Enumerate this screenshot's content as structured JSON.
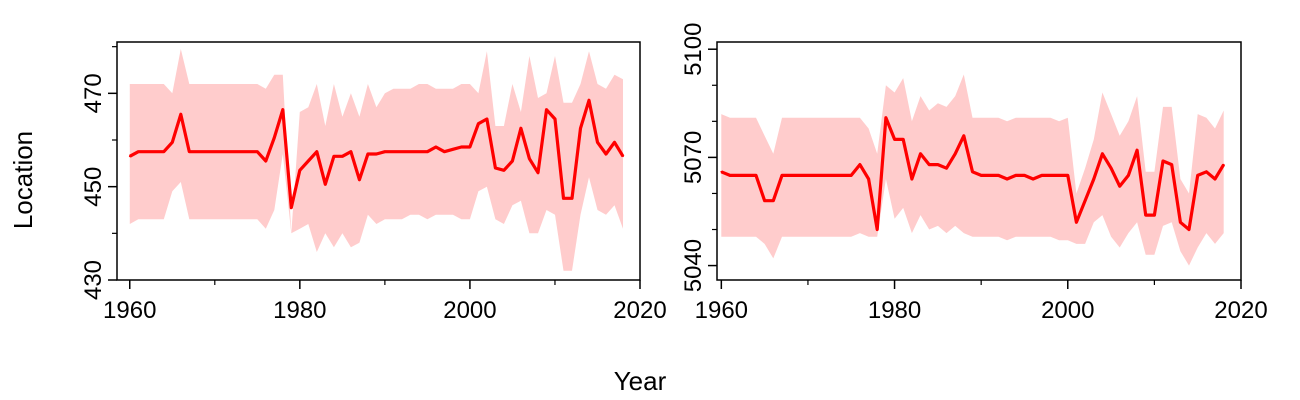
{
  "figure": {
    "xlabel": "Year",
    "ylabel": "Location"
  },
  "chart_data": [
    {
      "type": "line",
      "title": "",
      "xlabel": "Year",
      "ylabel": "Location",
      "xlim": [
        1958.5,
        2020
      ],
      "ylim": [
        430,
        481
      ],
      "xticks": [
        1960,
        1980,
        2000,
        2020
      ],
      "xminor": [
        1970,
        1990,
        2010
      ],
      "yticks": [
        430,
        450,
        470
      ],
      "yminor": [
        440,
        460,
        480
      ],
      "grid": false,
      "colors": {
        "line": "#ff0000",
        "band": "#ffcccc"
      },
      "series": [
        {
          "kind": "line",
          "x": [
            1960,
            1961,
            1962,
            1963,
            1964,
            1965,
            1966,
            1967,
            1968,
            1969,
            1970,
            1971,
            1972,
            1973,
            1974,
            1975,
            1976,
            1977,
            1978,
            1979,
            1980,
            1981,
            1982,
            1983,
            1984,
            1985,
            1986,
            1987,
            1988,
            1989,
            1990,
            1991,
            1992,
            1993,
            1994,
            1995,
            1996,
            1997,
            1998,
            1999,
            2000,
            2001,
            2002,
            2003,
            2004,
            2005,
            2006,
            2007,
            2008,
            2009,
            2010,
            2011,
            2012,
            2013,
            2014,
            2015,
            2016,
            2017,
            2018
          ],
          "y": [
            456.5,
            457.5,
            457.5,
            457.5,
            457.5,
            459.5,
            465.5,
            457.5,
            457.5,
            457.5,
            457.5,
            457.5,
            457.5,
            457.5,
            457.5,
            457.5,
            455.5,
            460.5,
            466.5,
            445.5,
            453.5,
            455.5,
            457.5,
            450.5,
            456.5,
            456.5,
            457.5,
            451.5,
            457,
            457,
            457.5,
            457.5,
            457.5,
            457.5,
            457.5,
            457.5,
            458.5,
            457.5,
            458,
            458.5,
            458.5,
            463.5,
            464.5,
            454,
            453.5,
            455.5,
            462.5,
            456,
            453,
            466.5,
            464.5,
            447.5,
            447.5,
            462.5,
            468.5,
            459.5,
            457,
            459.5,
            456.5
          ]
        },
        {
          "kind": "band",
          "x": [
            1960,
            1961,
            1962,
            1963,
            1964,
            1965,
            1966,
            1967,
            1968,
            1969,
            1970,
            1971,
            1972,
            1973,
            1974,
            1975,
            1976,
            1977,
            1978,
            1979,
            1980,
            1981,
            1982,
            1983,
            1984,
            1985,
            1986,
            1987,
            1988,
            1989,
            1990,
            1991,
            1992,
            1993,
            1994,
            1995,
            1996,
            1997,
            1998,
            1999,
            2000,
            2001,
            2002,
            2003,
            2004,
            2005,
            2006,
            2007,
            2008,
            2009,
            2010,
            2011,
            2012,
            2013,
            2014,
            2015,
            2016,
            2017,
            2018
          ],
          "lower": [
            442,
            443,
            443,
            443,
            443,
            449,
            451,
            443,
            443,
            443,
            443,
            443,
            443,
            443,
            443,
            443,
            441,
            445,
            457,
            440,
            441,
            442,
            436,
            440,
            437,
            440,
            437,
            438,
            444,
            442,
            443,
            443,
            443,
            444,
            444,
            443,
            444,
            444,
            444,
            443,
            443,
            449,
            450,
            443,
            442,
            446,
            447,
            440,
            440,
            445,
            444,
            432,
            432,
            444,
            452,
            445,
            444,
            446,
            441
          ],
          "upper": [
            472,
            472,
            472,
            472,
            472,
            470,
            479.5,
            472,
            472,
            472,
            472,
            472,
            472,
            472,
            472,
            472,
            471,
            474,
            474,
            440,
            466,
            467,
            472,
            463,
            472,
            465,
            470,
            465,
            472,
            467,
            470,
            471,
            471,
            471,
            472,
            472,
            471,
            471,
            471,
            472,
            472,
            470,
            479,
            463,
            463,
            472,
            466,
            478,
            469,
            470,
            478,
            468,
            468,
            472,
            479,
            472,
            471,
            474,
            473
          ]
        }
      ]
    },
    {
      "type": "line",
      "title": "",
      "xlabel": "Year",
      "ylabel": "",
      "xlim": [
        1959.5,
        2020
      ],
      "ylim": [
        5036,
        5102
      ],
      "xticks": [
        1960,
        1980,
        2000,
        2020
      ],
      "xminor": [
        1970,
        1990,
        2010
      ],
      "yticks": [
        5040,
        5070,
        5100
      ],
      "yminor": [
        5050,
        5060,
        5080,
        5090
      ],
      "grid": false,
      "colors": {
        "line": "#ff0000",
        "band": "#ffcccc"
      },
      "series": [
        {
          "kind": "line",
          "x": [
            1960,
            1961,
            1962,
            1963,
            1964,
            1965,
            1966,
            1967,
            1968,
            1969,
            1970,
            1971,
            1972,
            1973,
            1974,
            1975,
            1976,
            1977,
            1978,
            1979,
            1980,
            1981,
            1982,
            1983,
            1984,
            1985,
            1986,
            1987,
            1988,
            1989,
            1990,
            1991,
            1992,
            1993,
            1994,
            1995,
            1996,
            1997,
            1998,
            1999,
            2000,
            2001,
            2002,
            2003,
            2004,
            2005,
            2006,
            2007,
            2008,
            2009,
            2010,
            2011,
            2012,
            2013,
            2014,
            2015,
            2016,
            2017,
            2018
          ],
          "y": [
            5066,
            5065,
            5065,
            5065,
            5065,
            5058,
            5058,
            5065,
            5065,
            5065,
            5065,
            5065,
            5065,
            5065,
            5065,
            5065,
            5068,
            5064,
            5050,
            5081,
            5075,
            5075,
            5064,
            5071,
            5068,
            5068,
            5067,
            5071,
            5076,
            5066,
            5065,
            5065,
            5065,
            5064,
            5065,
            5065,
            5064,
            5065,
            5065,
            5065,
            5065,
            5052,
            5058,
            5064,
            5071,
            5067,
            5062,
            5065,
            5072,
            5054,
            5054,
            5069,
            5068,
            5052,
            5050,
            5065,
            5066,
            5064,
            5068
          ]
        },
        {
          "kind": "band",
          "x": [
            1960,
            1961,
            1962,
            1963,
            1964,
            1965,
            1966,
            1967,
            1968,
            1969,
            1970,
            1971,
            1972,
            1973,
            1974,
            1975,
            1976,
            1977,
            1978,
            1979,
            1980,
            1981,
            1982,
            1983,
            1984,
            1985,
            1986,
            1987,
            1988,
            1989,
            1990,
            1991,
            1992,
            1993,
            1994,
            1995,
            1996,
            1997,
            1998,
            1999,
            2000,
            2001,
            2002,
            2003,
            2004,
            2005,
            2006,
            2007,
            2008,
            2009,
            2010,
            2011,
            2012,
            2013,
            2014,
            2015,
            2016,
            2017,
            2018
          ],
          "lower": [
            5048,
            5048,
            5048,
            5048,
            5048,
            5046,
            5042,
            5048,
            5048,
            5048,
            5048,
            5048,
            5048,
            5048,
            5048,
            5048,
            5049,
            5048,
            5048,
            5064,
            5053,
            5056,
            5049,
            5054,
            5050,
            5051,
            5049,
            5051,
            5049,
            5048,
            5048,
            5048,
            5048,
            5047,
            5048,
            5048,
            5048,
            5048,
            5048,
            5047,
            5047,
            5046,
            5046,
            5052,
            5054,
            5048,
            5045,
            5049,
            5052,
            5043,
            5043,
            5051,
            5052,
            5044,
            5040,
            5045,
            5049,
            5046,
            5049
          ],
          "upper": [
            5082,
            5081,
            5081,
            5081,
            5081,
            5076,
            5071,
            5081,
            5081,
            5081,
            5081,
            5081,
            5081,
            5081,
            5081,
            5081,
            5081,
            5078,
            5071,
            5090,
            5088,
            5092,
            5080,
            5087,
            5083,
            5085,
            5084,
            5087,
            5093,
            5081,
            5081,
            5081,
            5081,
            5080,
            5081,
            5081,
            5081,
            5081,
            5081,
            5080,
            5081,
            5060,
            5067,
            5075,
            5088,
            5082,
            5076,
            5080,
            5087,
            5066,
            5066,
            5084,
            5084,
            5064,
            5060,
            5082,
            5081,
            5078,
            5083
          ]
        }
      ]
    }
  ]
}
